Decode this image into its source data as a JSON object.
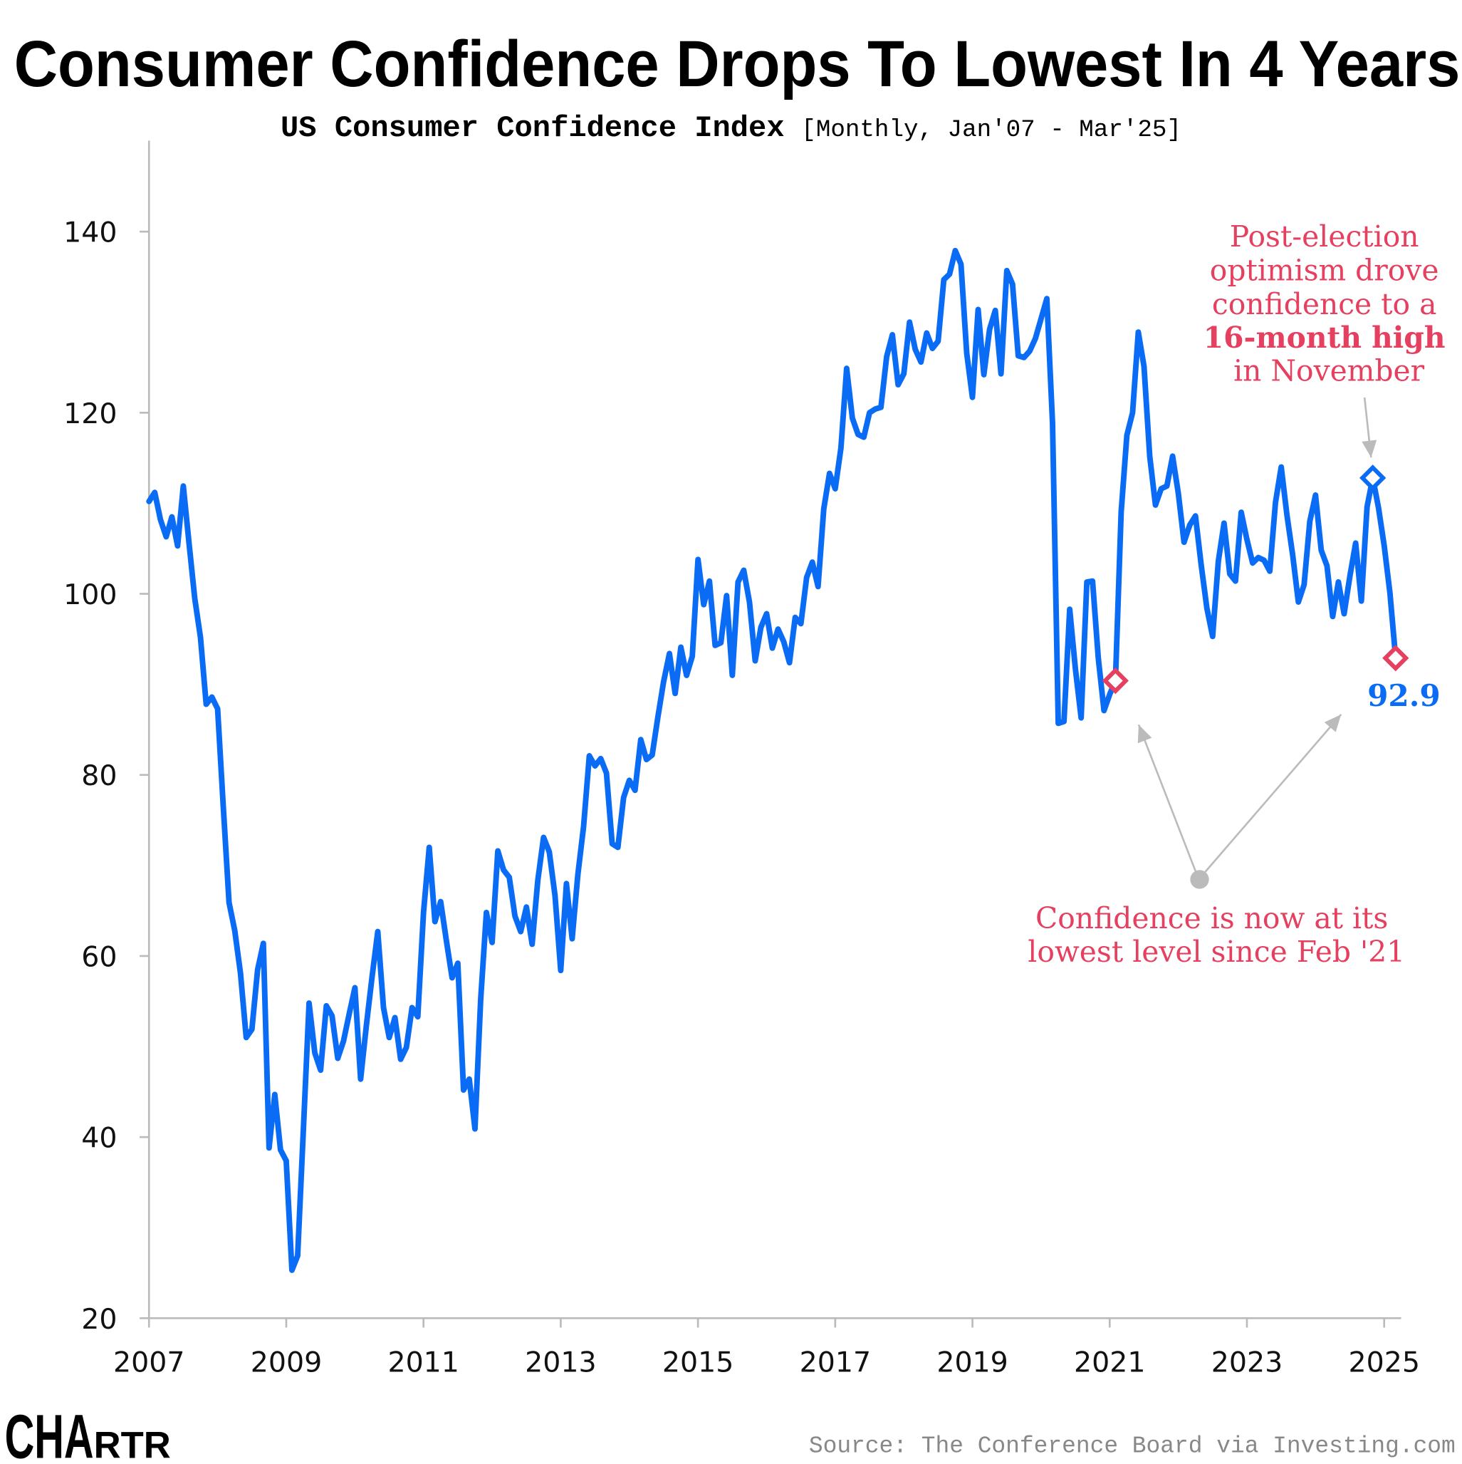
{
  "title": "Consumer Confidence Drops To Lowest In 4 Years",
  "subtitle": "US Consumer Confidence Index",
  "subtitle_range": "[Monthly, Jan'07 - Mar'25]",
  "source": "Source: The Conference Board via Investing.com",
  "logo": {
    "main": "CHA",
    "small": "RTR"
  },
  "colors": {
    "line": "#0a6cf5",
    "accent": "#e5405f",
    "arrow": "#bbbbbb",
    "axis": "#bbbbbb"
  },
  "annotations": {
    "high": {
      "lines": [
        "Post-election",
        "optimism drove",
        "confidence to a",
        "16-month high",
        "in November"
      ],
      "bold_line": 3
    },
    "low": {
      "lines": [
        "Confidence is now at its",
        "lowest level since Feb '21"
      ]
    },
    "last_label": "92.9"
  },
  "chart_data": {
    "type": "line",
    "title": "Consumer Confidence Drops To Lowest In 4 Years",
    "subtitle": "US Consumer Confidence Index [Monthly, Jan'07 - Mar'25]",
    "xlabel": "",
    "ylabel": "",
    "x_start": "2007-01",
    "frequency": "monthly",
    "xlim": [
      2007,
      2025.25
    ],
    "ylim": [
      20,
      150
    ],
    "xticks": [
      "2007",
      "2009",
      "2011",
      "2013",
      "2015",
      "2017",
      "2019",
      "2021",
      "2023",
      "2025"
    ],
    "yticks": [
      "20",
      "40",
      "60",
      "80",
      "100",
      "120",
      "140"
    ],
    "grid": false,
    "highlights": [
      {
        "date": "2021-02",
        "value": 90.4,
        "color": "#e5405f"
      },
      {
        "date": "2024-11",
        "value": 112.8,
        "color": "#0a6cf5"
      },
      {
        "date": "2025-03",
        "value": 92.9,
        "color": "#e5405f"
      }
    ],
    "values": [
      110.2,
      111.2,
      108.2,
      106.3,
      108.5,
      105.3,
      111.9,
      105.6,
      99.5,
      95.2,
      87.8,
      88.6,
      87.3,
      76.4,
      65.9,
      62.8,
      58.1,
      51.0,
      51.9,
      58.5,
      61.4,
      38.8,
      44.7,
      38.6,
      37.4,
      25.3,
      26.9,
      40.8,
      54.8,
      49.3,
      47.4,
      54.5,
      53.4,
      48.7,
      50.6,
      53.6,
      56.5,
      46.4,
      52.3,
      57.7,
      62.7,
      54.3,
      51.0,
      53.2,
      48.6,
      49.9,
      54.3,
      53.3,
      64.8,
      72.0,
      63.8,
      66.0,
      61.7,
      57.6,
      59.2,
      45.2,
      46.4,
      40.9,
      55.2,
      64.8,
      61.5,
      71.6,
      69.5,
      68.7,
      64.4,
      62.7,
      65.4,
      61.3,
      68.4,
      73.1,
      71.5,
      66.7,
      58.4,
      68.0,
      61.9,
      69.0,
      74.3,
      82.1,
      81.0,
      81.8,
      80.2,
      72.4,
      72.0,
      77.5,
      79.4,
      78.3,
      83.9,
      81.7,
      82.2,
      86.4,
      90.3,
      93.4,
      89.0,
      94.1,
      91.0,
      93.1,
      103.8,
      98.8,
      101.4,
      94.3,
      94.6,
      99.8,
      91.0,
      101.3,
      102.6,
      99.1,
      92.6,
      96.3,
      97.8,
      94.0,
      96.1,
      94.7,
      92.4,
      97.4,
      96.7,
      101.8,
      103.5,
      100.8,
      109.4,
      113.3,
      111.6,
      116.1,
      124.9,
      119.4,
      117.6,
      117.3,
      120.0,
      120.4,
      120.6,
      126.2,
      128.6,
      123.1,
      124.3,
      130.0,
      127.0,
      125.6,
      128.8,
      127.1,
      127.9,
      134.7,
      135.3,
      137.9,
      136.4,
      126.6,
      121.7,
      131.4,
      124.2,
      129.2,
      131.3,
      124.3,
      135.7,
      134.2,
      126.3,
      126.1,
      126.8,
      128.2,
      130.4,
      132.6,
      118.8,
      85.7,
      85.9,
      98.3,
      91.7,
      86.3,
      101.3,
      101.4,
      92.9,
      87.1,
      88.9,
      90.4,
      109.0,
      117.5,
      120.0,
      128.9,
      125.1,
      115.2,
      109.8,
      111.6,
      111.9,
      115.2,
      111.1,
      105.7,
      107.6,
      108.6,
      103.2,
      98.4,
      95.3,
      103.6,
      107.8,
      102.2,
      101.4,
      109.0,
      106.0,
      103.4,
      104.0,
      103.7,
      102.5,
      110.1,
      114.0,
      108.7,
      104.3,
      99.1,
      101.0,
      108.0,
      110.9,
      104.8,
      103.1,
      97.5,
      101.3,
      97.8,
      101.9,
      105.6,
      99.2,
      109.6,
      112.8,
      109.5,
      105.3,
      100.1,
      92.9
    ]
  }
}
